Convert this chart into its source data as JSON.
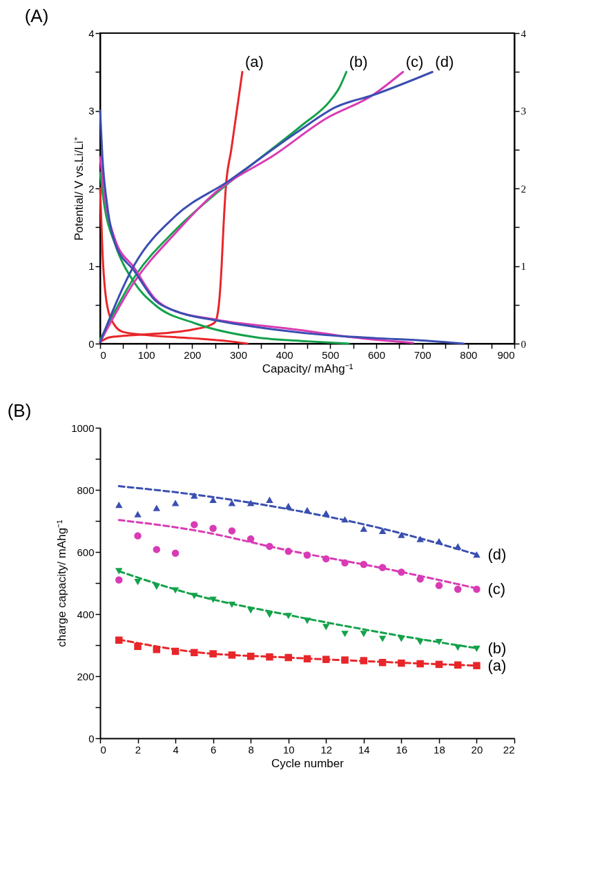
{
  "chart_data": [
    {
      "type": "line",
      "title": "(A)",
      "xlabel": "Capacity/ mAhg⁻¹",
      "ylabel": "Potential/ V vs.Li/Li⁺",
      "xlim": [
        0,
        900
      ],
      "xticks": [
        0,
        {
          "value": 50,
          "label": null
        },
        100,
        {
          "value": 150,
          "label": null
        },
        200,
        {
          "value": 250,
          "label": null
        },
        300,
        {
          "value": 350,
          "label": null
        },
        400,
        {
          "value": 450,
          "label": null
        },
        500,
        {
          "value": 550,
          "label": null
        },
        600,
        {
          "value": 650,
          "label": null
        },
        700,
        {
          "value": 750,
          "label": null
        },
        800,
        {
          "value": 850,
          "label": null
        },
        900
      ],
      "ylim": [
        0,
        4
      ],
      "yticks": [
        0,
        {
          "value": 0.5,
          "label": null
        },
        1,
        {
          "value": 1.5,
          "label": null
        },
        2,
        {
          "value": 2.5,
          "label": null
        },
        3,
        {
          "value": 3.5,
          "label": null
        },
        4
      ],
      "y2lim": [
        0,
        4
      ],
      "y2ticks": [
        0,
        {
          "value": 0.5,
          "label": null
        },
        1,
        {
          "value": 1.5,
          "label": null
        },
        2,
        {
          "value": 2.5,
          "label": null
        },
        3,
        {
          "value": 3.5,
          "label": null
        },
        4
      ],
      "grid": false,
      "line_style": "solid",
      "marker": "none",
      "series": [
        {
          "color": "#e8262a",
          "x": [
            0,
            5,
            15,
            30,
            50,
            100,
            200,
            280,
            320
          ],
          "values": [
            2.0,
            1.2,
            0.5,
            0.25,
            0.15,
            0.11,
            0.07,
            0.03,
            0.0
          ]
        },
        {
          "name": "(a)",
          "color": "#e8262a",
          "x": [
            0,
            20,
            50,
            100,
            150,
            200,
            240,
            250,
            258,
            264,
            268,
            273,
            285,
            297,
            309
          ],
          "values": [
            0.02,
            0.08,
            0.1,
            0.12,
            0.14,
            0.18,
            0.24,
            0.28,
            0.5,
            1.0,
            1.5,
            2.0,
            2.5,
            3.0,
            3.5
          ]
        },
        {
          "color": "#13a24b",
          "x": [
            0,
            10,
            32,
            75,
            119,
            207,
            340,
            450,
            540
          ],
          "values": [
            2.2,
            1.75,
            1.29,
            0.78,
            0.5,
            0.26,
            0.08,
            0.03,
            0.0
          ]
        },
        {
          "name": "(b)",
          "color": "#13a24b",
          "x": [
            0,
            75,
            163,
            251,
            350,
            440,
            500,
            520,
            535
          ],
          "values": [
            0.05,
            0.86,
            1.46,
            1.93,
            2.4,
            2.82,
            3.13,
            3.3,
            3.5
          ]
        },
        {
          "color": "#d93bb5",
          "x": [
            0,
            10,
            32,
            75,
            119,
            163,
            251,
            427,
            550,
            680
          ],
          "values": [
            2.4,
            1.9,
            1.35,
            0.97,
            0.58,
            0.42,
            0.31,
            0.18,
            0.08,
            0.01
          ]
        },
        {
          "name": "(c)",
          "color": "#d93bb5",
          "x": [
            0,
            75,
            163,
            251,
            381,
            491,
            592,
            658
          ],
          "values": [
            0.02,
            0.8,
            1.42,
            1.95,
            2.44,
            2.9,
            3.2,
            3.5
          ]
        },
        {
          "color": "#3a4fb0",
          "x": [
            0,
            5,
            15,
            32,
            75,
            119,
            163,
            251,
            381,
            491,
            600,
            700,
            790
          ],
          "values": [
            3.0,
            2.4,
            1.8,
            1.3,
            0.93,
            0.56,
            0.42,
            0.3,
            0.18,
            0.11,
            0.07,
            0.04,
            0.0
          ]
        },
        {
          "name": "(d)",
          "color": "#3a4fb0",
          "x": [
            0,
            75,
            163,
            278,
            427,
            513,
            592,
            722
          ],
          "values": [
            0.02,
            1.02,
            1.64,
            2.09,
            2.72,
            3.05,
            3.2,
            3.5
          ]
        }
      ]
    },
    {
      "type": "scatter",
      "title": "(B)",
      "xlabel": "Cycle number",
      "ylabel": "charge capacity/ mAhg⁻¹",
      "xlim": [
        0,
        22
      ],
      "xticks": [
        0,
        2,
        4,
        6,
        8,
        10,
        12,
        14,
        16,
        18,
        20,
        22
      ],
      "ylim": [
        0,
        1000
      ],
      "yticks": [
        0,
        {
          "value": 100,
          "label": null
        },
        200,
        {
          "value": 300,
          "label": null
        },
        400,
        {
          "value": 500,
          "label": null
        },
        600,
        {
          "value": 700,
          "label": null
        },
        800,
        {
          "value": 900,
          "label": null
        },
        1000
      ],
      "grid": false,
      "x": [
        1,
        2,
        3,
        4,
        5,
        6,
        7,
        8,
        9,
        10,
        11,
        12,
        13,
        14,
        15,
        16,
        17,
        18,
        19,
        20
      ],
      "series": [
        {
          "name": "(a)",
          "color": "#e8262a",
          "marker": "square",
          "values": [
            316,
            296,
            286,
            280,
            276,
            272,
            268,
            264,
            262,
            260,
            256,
            254,
            252,
            250,
            244,
            242,
            240,
            238,
            236,
            234
          ]
        },
        {
          "name": "(b)",
          "color": "#13a24b",
          "marker": "triangle-down",
          "values": [
            538,
            503,
            488,
            476,
            458,
            446,
            430,
            412,
            398,
            394,
            378,
            358,
            336,
            336,
            320,
            320,
            310,
            310,
            292,
            288
          ]
        },
        {
          "name": "(c)",
          "color": "#d93bb5",
          "marker": "circle",
          "values": [
            510,
            652,
            608,
            596,
            688,
            676,
            668,
            642,
            618,
            602,
            590,
            578,
            565,
            560,
            550,
            535,
            513,
            492,
            480,
            480
          ]
        },
        {
          "name": "(d)",
          "color": "#3a4fb0",
          "marker": "triangle",
          "values": [
            752,
            722,
            742,
            758,
            782,
            768,
            758,
            758,
            768,
            748,
            735,
            725,
            705,
            675,
            668,
            655,
            642,
            635,
            618,
            592
          ]
        },
        {
          "type": "line",
          "line_style": "dashed",
          "color": "#e8262a",
          "x": [
            1,
            5,
            10,
            15,
            20
          ],
          "values": [
            318,
            278,
            260,
            246,
            234
          ]
        },
        {
          "type": "line",
          "line_style": "dashed",
          "color": "#13a24b",
          "x": [
            1,
            5,
            10,
            15,
            20
          ],
          "values": [
            538,
            462,
            397,
            340,
            290
          ]
        },
        {
          "type": "line",
          "line_style": "dashed",
          "color": "#d93bb5",
          "x": [
            1,
            5,
            10,
            15,
            20
          ],
          "values": [
            703,
            670,
            605,
            548,
            483
          ]
        },
        {
          "type": "line",
          "line_style": "dashed",
          "color": "#3a4fb0",
          "x": [
            1,
            5,
            10,
            15,
            20
          ],
          "values": [
            812,
            785,
            738,
            675,
            592
          ]
        }
      ]
    }
  ]
}
